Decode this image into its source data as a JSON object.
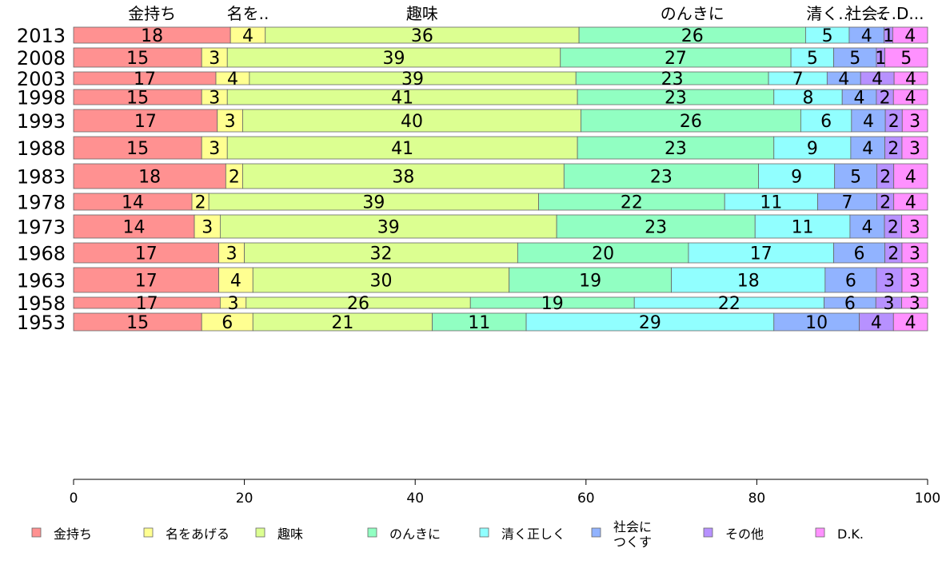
{
  "chart_data": {
    "type": "bar",
    "orientation": "horizontal",
    "stacked": true,
    "title": "",
    "xlabel": "",
    "ylabel": "",
    "xlim": [
      0,
      100
    ],
    "xticks": [
      "0",
      "20",
      "40",
      "60",
      "80",
      "100"
    ],
    "grid": false,
    "legend_position": "bottom",
    "top_labels": [
      "金持ち",
      "名を..",
      "趣味",
      "のんきに",
      "清く..",
      "社会..",
      "そ..",
      "D..."
    ],
    "categories": [
      "2013",
      "2008",
      "2003",
      "1998",
      "1993",
      "1988",
      "1983",
      "1978",
      "1973",
      "1968",
      "1963",
      "1958",
      "1953"
    ],
    "bar_widths": [
      20,
      24,
      16,
      19,
      28,
      28,
      31,
      21,
      29,
      25,
      31,
      14,
      22
    ],
    "series": [
      {
        "name": "金持ち",
        "color": "#ff9191",
        "values": [
          18,
          15,
          17,
          15,
          17,
          15,
          18,
          14,
          14,
          17,
          17,
          17,
          15
        ]
      },
      {
        "name": "名をあげる",
        "color": "#ffff91",
        "values": [
          4,
          3,
          4,
          3,
          3,
          3,
          2,
          2,
          3,
          3,
          4,
          3,
          6
        ]
      },
      {
        "name": "趣味",
        "color": "#dcff91",
        "values": [
          36,
          39,
          39,
          41,
          40,
          41,
          38,
          39,
          39,
          32,
          30,
          26,
          21
        ]
      },
      {
        "name": "のんきに",
        "color": "#91ffc2",
        "values": [
          26,
          27,
          23,
          23,
          26,
          23,
          23,
          22,
          23,
          20,
          19,
          19,
          11
        ]
      },
      {
        "name": "清く正しく",
        "color": "#91ffff",
        "values": [
          5,
          5,
          7,
          8,
          6,
          9,
          9,
          11,
          11,
          17,
          18,
          22,
          29
        ]
      },
      {
        "name": "社会に\nつくす",
        "color": "#91b3ff",
        "values": [
          4,
          5,
          4,
          4,
          4,
          4,
          5,
          7,
          4,
          6,
          6,
          6,
          10
        ]
      },
      {
        "name": "その他",
        "color": "#b791ff",
        "values": [
          1,
          1,
          4,
          2,
          2,
          2,
          2,
          2,
          2,
          2,
          3,
          3,
          4
        ]
      },
      {
        "name": "D.K.",
        "color": "#ff91ff",
        "values": [
          4,
          5,
          4,
          4,
          3,
          3,
          4,
          4,
          3,
          3,
          3,
          3,
          4
        ]
      }
    ]
  }
}
